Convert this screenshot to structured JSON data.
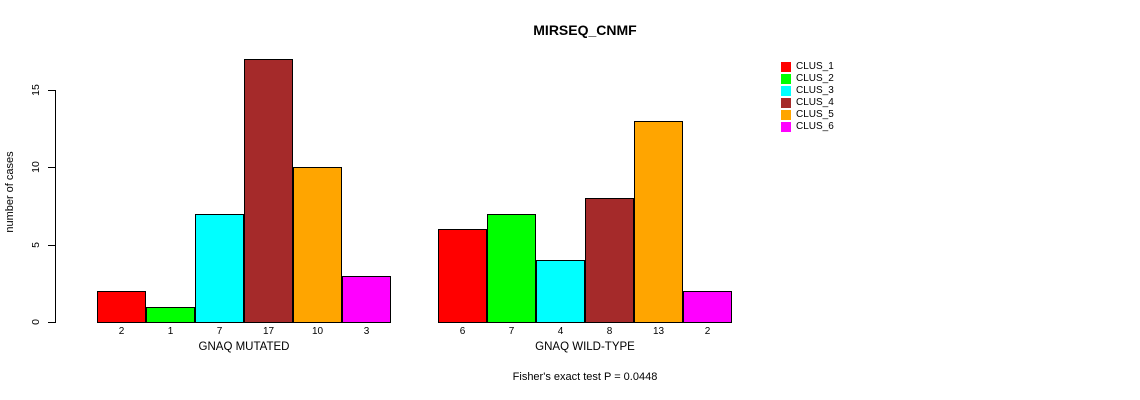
{
  "title": "MIRSEQ_CNMF",
  "footer": "Fisher's exact test P = 0.0448",
  "chart_data": {
    "type": "bar",
    "title": "MIRSEQ_CNMF",
    "ylabel": "number of cases",
    "ylim": [
      0,
      17.5
    ],
    "yticks": [
      0,
      5,
      10,
      15
    ],
    "grid": false,
    "legend_position": "right",
    "legend": [
      {
        "label": "CLUS_1",
        "color": "#FF0000"
      },
      {
        "label": "CLUS_2",
        "color": "#00FF00"
      },
      {
        "label": "CLUS_3",
        "color": "#00FFFF"
      },
      {
        "label": "CLUS_4",
        "color": "#A52A2A"
      },
      {
        "label": "CLUS_5",
        "color": "#FFA500"
      },
      {
        "label": "CLUS_6",
        "color": "#FF00FF"
      }
    ],
    "groups": [
      {
        "label": "GNAQ MUTATED",
        "values": [
          2,
          1,
          7,
          17,
          10,
          3
        ]
      },
      {
        "label": "GNAQ WILD-TYPE",
        "values": [
          6,
          7,
          4,
          8,
          13,
          2
        ]
      }
    ],
    "annotation": "Fisher's exact test P = 0.0448"
  }
}
